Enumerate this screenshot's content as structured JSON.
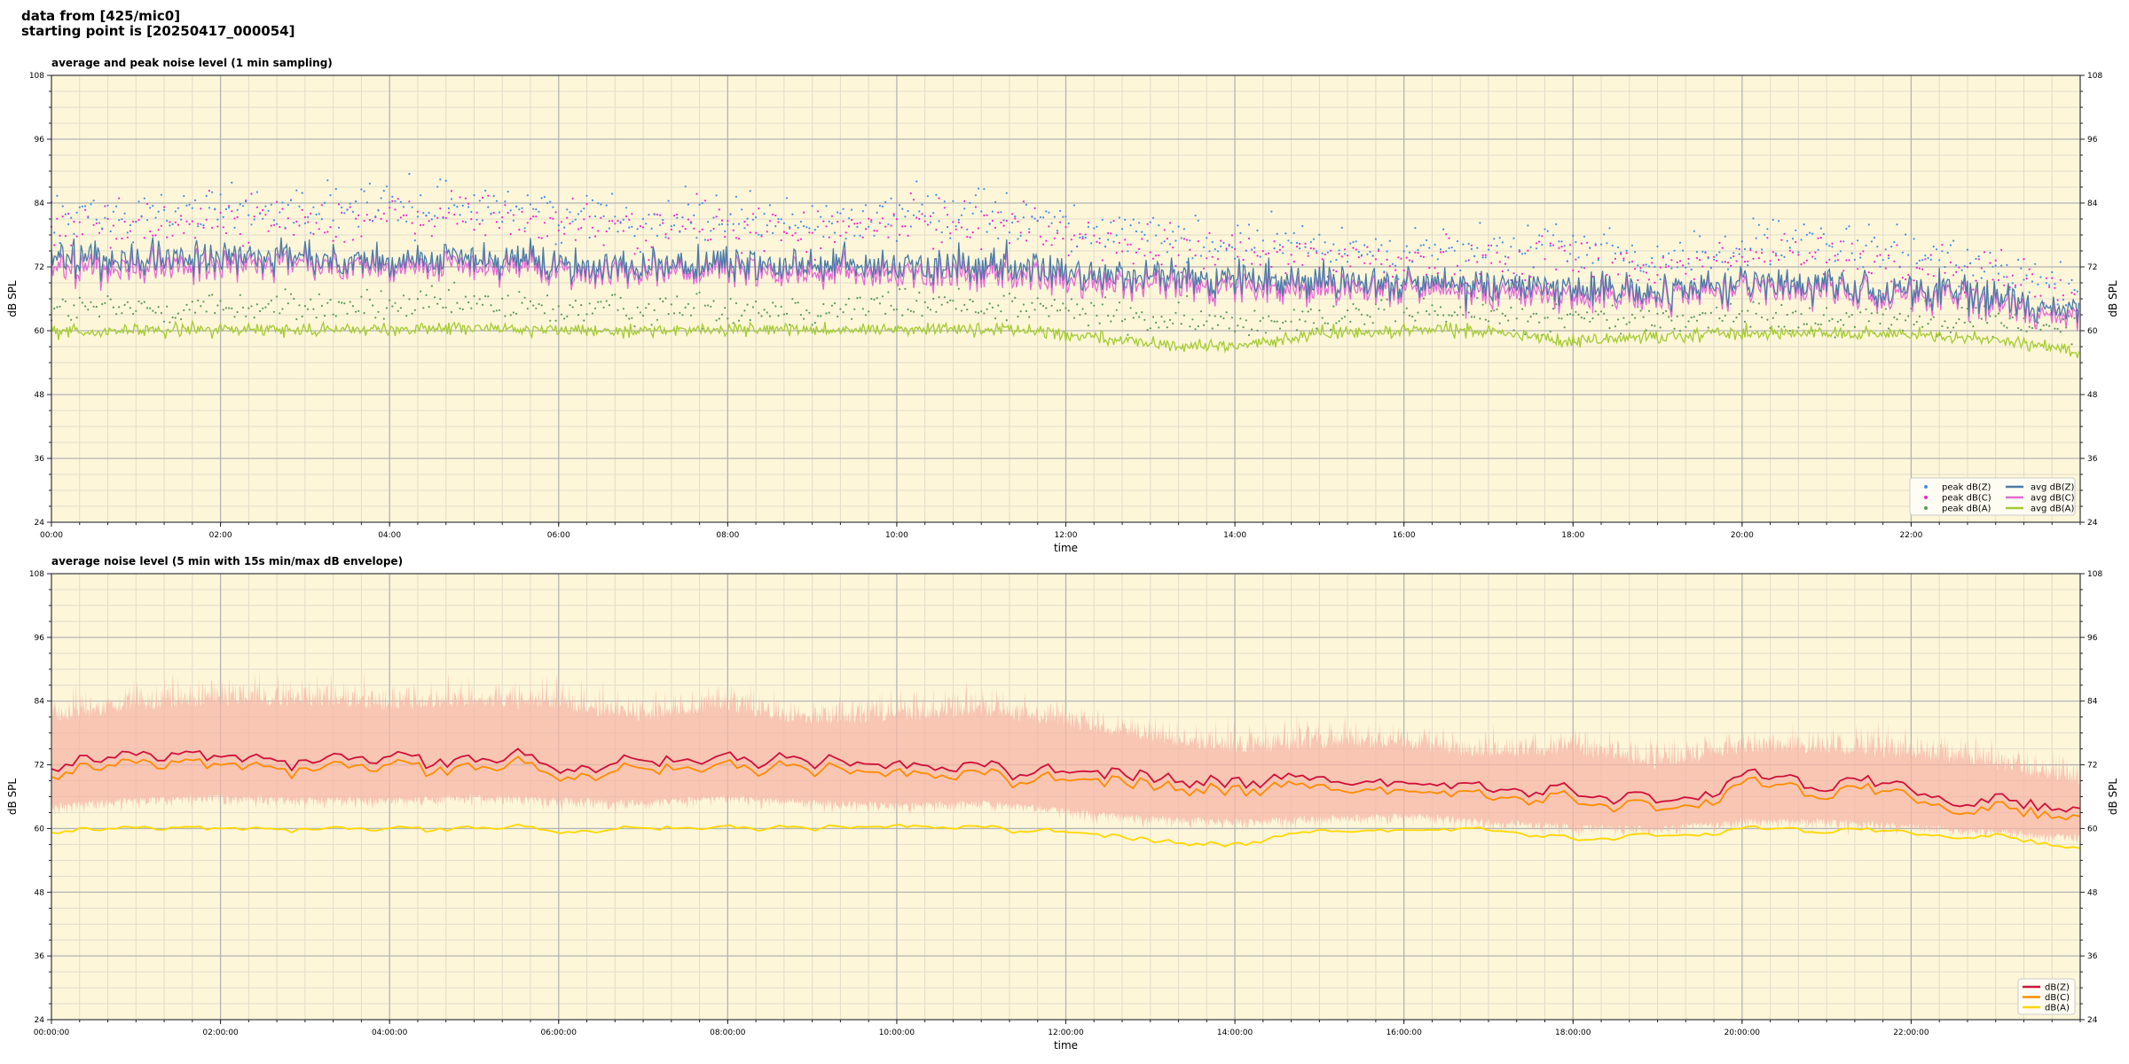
{
  "header": {
    "line1": "data from [425/mic0]",
    "line2": "starting point is [20250417_000054]"
  },
  "colors": {
    "plot_bg": "#fdf6d9",
    "major_grid": "#b4b4b4",
    "minor_grid": "#e2dccb",
    "peak_z": "#3f8ee8",
    "peak_c": "#f025d0",
    "peak_a": "#5a9a5a",
    "avg_z": "#4a7ba6",
    "avg_c": "#e56ad8",
    "avg_a": "#a4cc32",
    "line_z": "#d0103a",
    "line_c": "#ff8c00",
    "line_a": "#ffd700",
    "envelope": "#f5b5a5"
  },
  "chart_data": [
    {
      "type": "line",
      "title": "average and peak noise level (1 min sampling)",
      "xlabel": "time",
      "ylabel": "dB SPL",
      "ylim": [
        24,
        108
      ],
      "xlim_hours": [
        0,
        24
      ],
      "yticks": [
        "24",
        "36",
        "48",
        "60",
        "72",
        "84",
        "96",
        "108"
      ],
      "xticks": [
        "00:00",
        "02:00",
        "04:00",
        "06:00",
        "08:00",
        "10:00",
        "12:00",
        "14:00",
        "16:00",
        "18:00",
        "20:00",
        "22:00"
      ],
      "grid": true,
      "legend_position": "lower right",
      "legend": [
        "peak dB(Z)",
        "peak dB(C)",
        "peak dB(A)",
        "avg dB(Z)",
        "avg dB(C)",
        "avg dB(A)"
      ],
      "series_profile_hours": [
        0,
        1,
        2,
        3,
        4,
        5,
        6,
        7,
        8,
        9,
        10,
        11,
        12,
        13,
        14,
        15,
        16,
        17,
        18,
        19,
        20,
        21,
        22,
        23,
        24
      ],
      "series": [
        {
          "name": "avg dB(Z)",
          "values": [
            73.5,
            73.5,
            74,
            73.5,
            73,
            73.5,
            72.5,
            72,
            72.5,
            72,
            72,
            72,
            71,
            70,
            69.5,
            69.5,
            69,
            68.5,
            68,
            67,
            69,
            68.5,
            67.5,
            66.5,
            63
          ]
        },
        {
          "name": "avg dB(C)",
          "values": [
            71.5,
            72,
            72.5,
            72.5,
            72,
            72,
            71.5,
            71,
            71.5,
            70.5,
            70.5,
            70.5,
            69.5,
            68.5,
            68,
            68,
            68,
            67,
            66.5,
            66,
            68,
            67.5,
            66.5,
            65.5,
            61.5
          ]
        },
        {
          "name": "avg dB(A)",
          "values": [
            59.8,
            60,
            60.2,
            60.3,
            60.2,
            60.5,
            60,
            60,
            60.3,
            60,
            60.5,
            60.3,
            59.5,
            57.5,
            57,
            59.5,
            60,
            60,
            58,
            59,
            59.5,
            59.5,
            59.2,
            58.5,
            56
          ]
        },
        {
          "name": "peak dB(Z)",
          "values": [
            81,
            82,
            83,
            83,
            83,
            84,
            82,
            81,
            82,
            80,
            82,
            83,
            80,
            77,
            76,
            76,
            75,
            75,
            76,
            73,
            76,
            76,
            74,
            72,
            68
          ]
        },
        {
          "name": "peak dB(C)",
          "values": [
            79,
            80,
            81,
            81,
            81,
            82,
            80,
            79,
            80,
            78,
            80,
            81,
            78,
            75,
            74,
            74,
            73,
            73,
            74,
            71,
            74,
            74,
            72,
            70,
            66
          ]
        },
        {
          "name": "peak dB(A)",
          "values": [
            64,
            64,
            64.5,
            64.5,
            64.5,
            65,
            64,
            64,
            64.5,
            64,
            65,
            65,
            64,
            62,
            61.5,
            63,
            63.5,
            63,
            62.5,
            62,
            62.5,
            62.5,
            62.5,
            62,
            60
          ]
        }
      ]
    },
    {
      "type": "line",
      "title": "average noise level (5 min with 15s min/max dB envelope)",
      "xlabel": "time",
      "ylabel": "dB SPL",
      "ylim": [
        24,
        108
      ],
      "xlim_hours": [
        0,
        24
      ],
      "yticks": [
        "24",
        "36",
        "48",
        "60",
        "72",
        "84",
        "96",
        "108"
      ],
      "xticks": [
        "00:00:00",
        "02:00:00",
        "04:00:00",
        "06:00:00",
        "08:00:00",
        "10:00:00",
        "12:00:00",
        "14:00:00",
        "16:00:00",
        "18:00:00",
        "20:00:00",
        "22:00:00"
      ],
      "grid": true,
      "legend_position": "lower right",
      "legend": [
        "dB(Z)",
        "dB(C)",
        "dB(A)"
      ],
      "series_profile_hours": [
        0,
        1,
        2,
        3,
        4,
        5,
        6,
        7,
        8,
        9,
        10,
        11,
        12,
        13,
        14,
        15,
        16,
        17,
        18,
        19,
        20,
        21,
        22,
        23,
        24
      ],
      "series": [
        {
          "name": "dB(Z)",
          "values": [
            72,
            73.5,
            73.5,
            73,
            73.5,
            74,
            73,
            72.5,
            73.5,
            72.5,
            72,
            72.5,
            71,
            69,
            69,
            69,
            69.5,
            68,
            67,
            66,
            68.5,
            68,
            67,
            65,
            63
          ]
        },
        {
          "name": "dB(C)",
          "values": [
            70.5,
            72,
            72,
            71.5,
            72,
            72.5,
            71.5,
            71,
            72,
            71,
            70.5,
            71,
            69.5,
            67.5,
            67.5,
            67.5,
            68,
            66.5,
            65.5,
            64.5,
            67,
            66.5,
            65.5,
            63.5,
            61.5
          ]
        },
        {
          "name": "dB(A)",
          "values": [
            59.5,
            60,
            60,
            60,
            60,
            60.5,
            60,
            60,
            60.3,
            60,
            60.5,
            60.5,
            59.5,
            57.5,
            57,
            59.5,
            60,
            60,
            58,
            59,
            59.5,
            59.5,
            59,
            58.5,
            56
          ]
        },
        {
          "name": "envelope max",
          "values": [
            80,
            82,
            83,
            83,
            82,
            83,
            82,
            80,
            82,
            79,
            80,
            81,
            79,
            76,
            74,
            75,
            75,
            73,
            74,
            71,
            74,
            74,
            73,
            71,
            68
          ]
        },
        {
          "name": "envelope min",
          "values": [
            65,
            66,
            66.5,
            66,
            66,
            66.5,
            66,
            65.5,
            66.5,
            65.5,
            65,
            65.5,
            64,
            62.5,
            62,
            62.5,
            63,
            62,
            61,
            60.5,
            62,
            62,
            61,
            60,
            59
          ]
        }
      ]
    }
  ]
}
